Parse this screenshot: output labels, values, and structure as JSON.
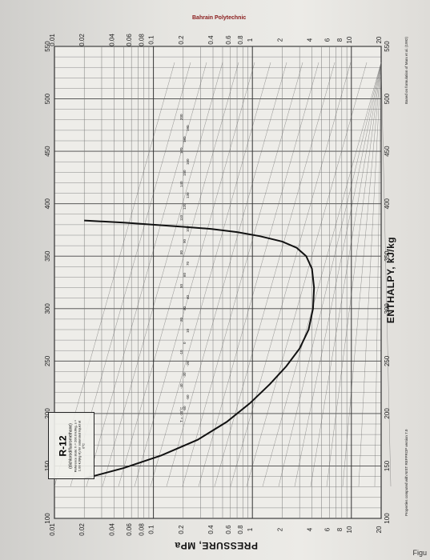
{
  "chart_data": {
    "type": "line",
    "title": "R-12",
    "subtitle": "(dichlorodifluoromethane)",
    "reference_text": "Reference state: h = 200.0 kJ/kg, s = 1.00 kJ/(kg·K) for saturated liquid at 0°C",
    "xlabel": "ENTHALPY, kJ/kg",
    "ylabel": "PRESSURE, MPa",
    "xlim": [
      100,
      550
    ],
    "ylim": [
      0.01,
      20
    ],
    "y_scale": "log",
    "x_ticks": [
      100,
      150,
      200,
      250,
      300,
      350,
      400,
      450,
      500,
      550
    ],
    "y_ticks": [
      0.01,
      0.02,
      0.04,
      0.06,
      0.08,
      0.1,
      0.2,
      0.4,
      0.6,
      0.8,
      1,
      2,
      4,
      6,
      8,
      10,
      20
    ],
    "y_tick_labels": [
      "0.01",
      "0.02",
      "0.04",
      "0.06",
      "0.08",
      "0.1",
      "0.2",
      "0.4",
      "0.6",
      "0.8",
      "1",
      "2",
      "4",
      "6",
      "8",
      "10",
      "20"
    ],
    "grid": true,
    "series": [
      {
        "name": "",
        "points": [
          [
            138,
            0.02
          ],
          [
            148,
            0.05
          ],
          [
            160,
            0.12
          ],
          [
            175,
            0.28
          ],
          [
            192,
            0.55
          ],
          [
            210,
            0.95
          ],
          [
            228,
            1.5
          ],
          [
            245,
            2.2
          ],
          [
            262,
            3.0
          ],
          [
            280,
            3.7
          ],
          [
            300,
            4.1
          ],
          [
            320,
            4.2
          ],
          [
            338,
            4.0
          ],
          [
            350,
            3.5
          ],
          [
            358,
            2.8
          ],
          [
            364,
            2.0
          ],
          [
            369,
            1.2
          ],
          [
            373,
            0.7
          ],
          [
            376,
            0.38
          ],
          [
            378,
            0.2
          ],
          [
            380,
            0.1
          ],
          [
            382,
            0.05
          ],
          [
            384,
            0.02
          ]
        ]
      }
    ],
    "isotherm_labels": [
      "T = -70°C",
      "-60",
      "-50",
      "-40",
      "-30",
      "-20",
      "-10",
      "0",
      "10",
      "20",
      "30",
      "40",
      "50",
      "60",
      "70",
      "80",
      "90",
      "100",
      "110",
      "120",
      "130",
      "140",
      "150",
      "160",
      "170",
      "180",
      "190",
      "200"
    ],
    "right_axis_labels": [
      "20",
      "10",
      "8",
      "6",
      "4",
      "2",
      "1",
      "0.8",
      "0.6",
      "0.4",
      "0.2",
      "0.1",
      "0.08",
      "0.06",
      "0.04",
      "0.02",
      "0.01"
    ],
    "annotations": [
      "Properties computed with NIST REFPROP version 7.0",
      "Based on formulation of Marx et al. (1992)",
      "Bahrain Polytechnic"
    ],
    "footer": "Figu"
  }
}
